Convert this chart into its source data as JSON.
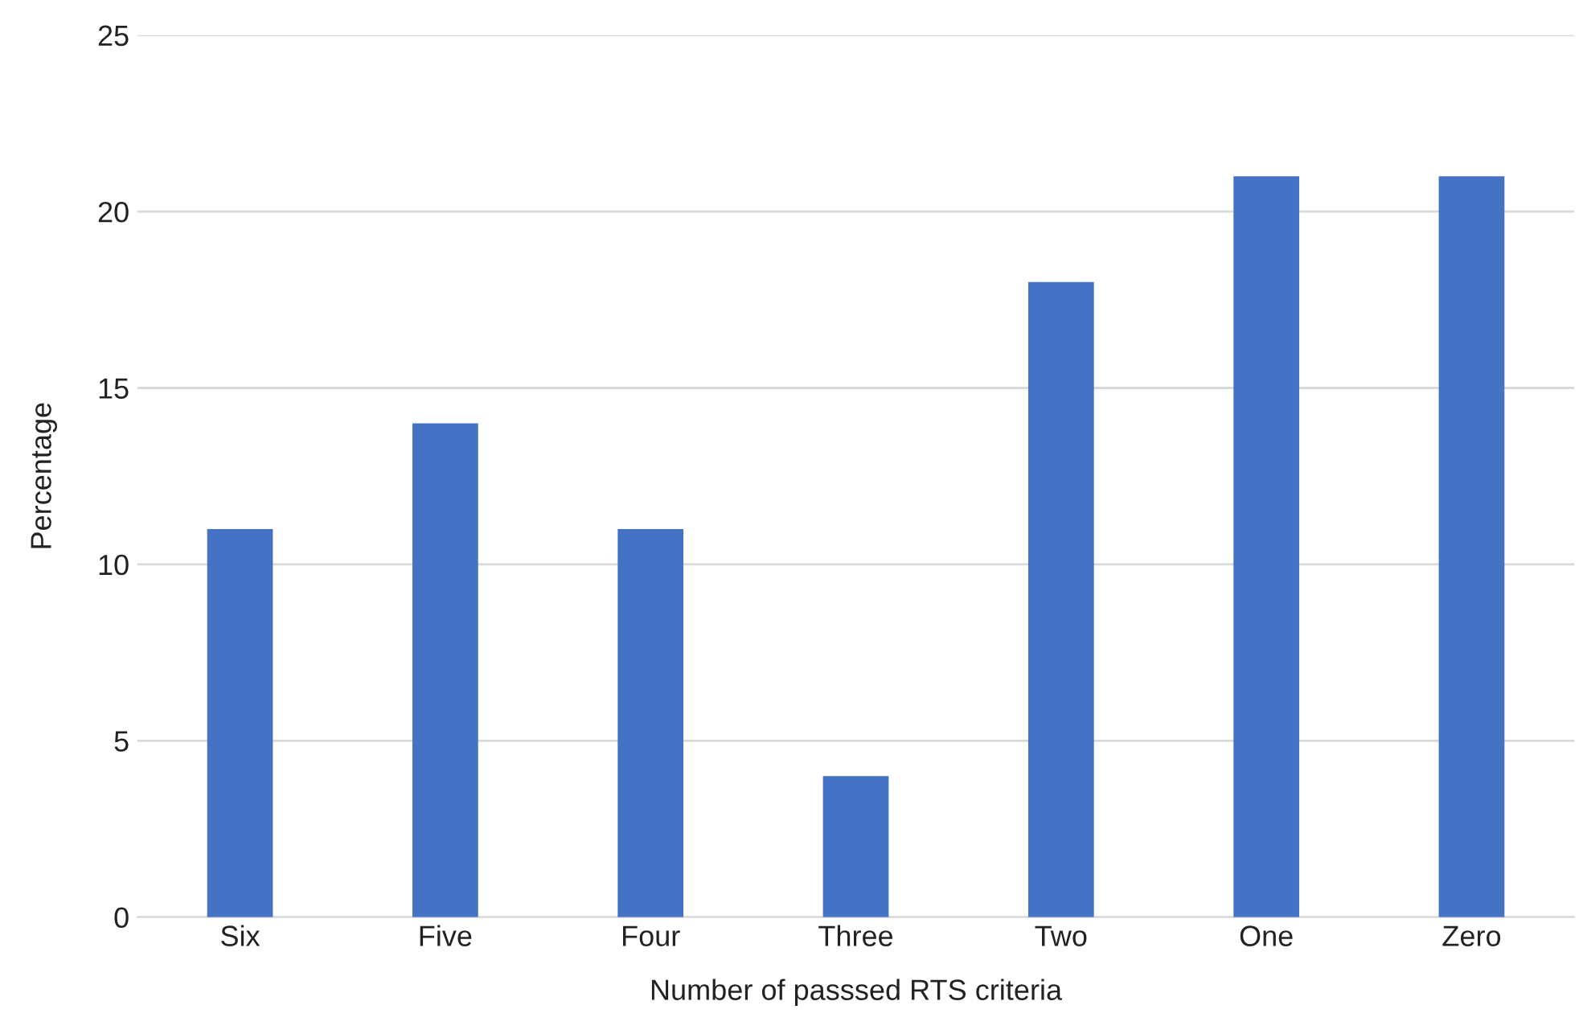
{
  "chart_data": {
    "type": "bar",
    "xlabel": "Number of passsed RTS criteria",
    "ylabel": "Percentage",
    "categories": [
      "Six",
      "Five",
      "Four",
      "Three",
      "Two",
      "One",
      "Zero"
    ],
    "values": [
      11,
      14,
      11,
      4,
      18,
      21,
      21
    ],
    "color": "#4472c4",
    "ylim": [
      0,
      25
    ],
    "yticks": [
      0,
      5,
      10,
      15,
      20,
      25
    ],
    "grid": "y"
  }
}
